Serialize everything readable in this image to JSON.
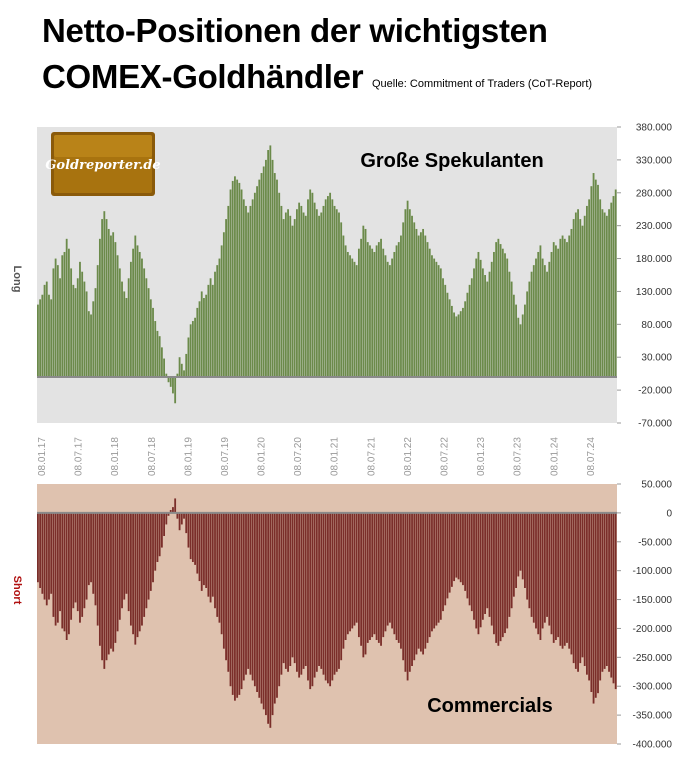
{
  "header": {
    "title_line1": "Netto-Positionen der wichtigsten",
    "title_line2": "COMEX-Goldhändler",
    "source": "Quelle: Commitment of Traders (CoT-Report)"
  },
  "logo": {
    "text": "Goldreporter.de"
  },
  "colors": {
    "top_bg": "#e3e3e3",
    "top_bar": "#6b8a4a",
    "bottom_bg": "#dfc2af",
    "bottom_bar": "#7a2e2a",
    "zero_line": "#8a8a8a",
    "long_label": "#555555",
    "short_label": "#b01010"
  },
  "chart_data": [
    {
      "type": "bar",
      "title": "Große Spekulanten",
      "ylabel": "Long",
      "ylim": [
        -70000,
        380000
      ],
      "yticks": [
        "380.000",
        "330.000",
        "280.000",
        "230.000",
        "180.000",
        "130.000",
        "80.000",
        "30.000",
        "-20.000",
        "-70.000"
      ],
      "xticks": [
        "08.01.17",
        "08.07.17",
        "08.01.18",
        "08.07.18",
        "08.01.19",
        "08.07.19",
        "08.01.20",
        "08.07.20",
        "08.01.21",
        "08.07.21",
        "08.01.22",
        "08.07.22",
        "08.01.23",
        "08.07.23",
        "08.01.24",
        "08.07.24"
      ],
      "series": [
        {
          "values": [
            110000,
            118000,
            125000,
            140000,
            145000,
            125000,
            118000,
            165000,
            180000,
            170000,
            150000,
            185000,
            190000,
            210000,
            195000,
            165000,
            140000,
            135000,
            150000,
            175000,
            160000,
            145000,
            130000,
            100000,
            95000,
            115000,
            135000,
            170000,
            210000,
            240000,
            252000,
            240000,
            225000,
            215000,
            220000,
            205000,
            185000,
            165000,
            145000,
            130000,
            120000,
            150000,
            175000,
            195000,
            215000,
            200000,
            190000,
            180000,
            165000,
            150000,
            135000,
            118000,
            105000,
            85000,
            70000,
            62000,
            45000,
            28000,
            5000,
            -8000,
            -15000,
            -25000,
            -40000,
            5000,
            30000,
            20000,
            10000,
            35000,
            60000,
            80000,
            85000,
            90000,
            105000,
            115000,
            130000,
            120000,
            125000,
            140000,
            150000,
            140000,
            160000,
            170000,
            180000,
            200000,
            220000,
            240000,
            260000,
            285000,
            298000,
            305000,
            300000,
            295000,
            285000,
            270000,
            260000,
            250000,
            260000,
            270000,
            280000,
            290000,
            300000,
            310000,
            320000,
            330000,
            345000,
            352000,
            330000,
            310000,
            300000,
            280000,
            260000,
            240000,
            250000,
            255000,
            245000,
            230000,
            240000,
            255000,
            265000,
            260000,
            250000,
            245000,
            270000,
            285000,
            280000,
            265000,
            255000,
            245000,
            250000,
            260000,
            270000,
            275000,
            280000,
            270000,
            260000,
            255000,
            250000,
            235000,
            215000,
            200000,
            190000,
            185000,
            180000,
            175000,
            170000,
            195000,
            210000,
            230000,
            225000,
            205000,
            200000,
            195000,
            190000,
            200000,
            205000,
            210000,
            195000,
            185000,
            175000,
            170000,
            180000,
            190000,
            200000,
            205000,
            215000,
            235000,
            255000,
            268000,
            255000,
            245000,
            235000,
            225000,
            215000,
            220000,
            225000,
            215000,
            205000,
            195000,
            185000,
            180000,
            175000,
            170000,
            165000,
            150000,
            140000,
            128000,
            118000,
            108000,
            98000,
            92000,
            95000,
            100000,
            105000,
            115000,
            128000,
            140000,
            150000,
            165000,
            180000,
            190000,
            178000,
            165000,
            155000,
            145000,
            160000,
            175000,
            190000,
            205000,
            210000,
            202000,
            195000,
            188000,
            180000,
            160000,
            145000,
            125000,
            110000,
            90000,
            80000,
            95000,
            110000,
            130000,
            145000,
            160000,
            170000,
            180000,
            190000,
            200000,
            180000,
            170000,
            160000,
            175000,
            190000,
            205000,
            200000,
            195000,
            210000,
            215000,
            210000,
            205000,
            215000,
            225000,
            240000,
            250000,
            255000,
            240000,
            230000,
            245000,
            260000,
            270000,
            290000,
            310000,
            300000,
            292000,
            270000,
            255000,
            250000,
            245000,
            255000,
            265000,
            275000,
            285000
          ]
        }
      ]
    },
    {
      "type": "bar",
      "title": "Commercials",
      "ylabel": "Short",
      "ylim": [
        -400000,
        50000
      ],
      "yticks": [
        "50.000",
        "0",
        "-50.000",
        "-100.000",
        "-150.000",
        "-200.000",
        "-250.000",
        "-300.000",
        "-350.000",
        "-400.000"
      ],
      "series": [
        {
          "values": [
            -120000,
            -130000,
            -140000,
            -150000,
            -160000,
            -150000,
            -140000,
            -180000,
            -195000,
            -190000,
            -170000,
            -200000,
            -205000,
            -220000,
            -210000,
            -185000,
            -165000,
            -155000,
            -170000,
            -190000,
            -180000,
            -165000,
            -150000,
            -125000,
            -120000,
            -140000,
            -160000,
            -195000,
            -230000,
            -255000,
            -270000,
            -255000,
            -245000,
            -235000,
            -240000,
            -225000,
            -205000,
            -185000,
            -165000,
            -150000,
            -140000,
            -170000,
            -195000,
            -210000,
            -228000,
            -215000,
            -205000,
            -195000,
            -180000,
            -165000,
            -150000,
            -135000,
            -120000,
            -100000,
            -85000,
            -75000,
            -60000,
            -40000,
            -20000,
            -5000,
            5000,
            10000,
            25000,
            -10000,
            -30000,
            -20000,
            -10000,
            -35000,
            -60000,
            -80000,
            -85000,
            -90000,
            -105000,
            -118000,
            -135000,
            -125000,
            -130000,
            -145000,
            -155000,
            -145000,
            -165000,
            -180000,
            -190000,
            -210000,
            -235000,
            -255000,
            -275000,
            -300000,
            -315000,
            -325000,
            -320000,
            -315000,
            -305000,
            -290000,
            -280000,
            -270000,
            -280000,
            -290000,
            -300000,
            -310000,
            -320000,
            -330000,
            -340000,
            -350000,
            -365000,
            -372000,
            -350000,
            -330000,
            -320000,
            -300000,
            -280000,
            -260000,
            -270000,
            -275000,
            -265000,
            -250000,
            -260000,
            -275000,
            -285000,
            -280000,
            -270000,
            -265000,
            -290000,
            -305000,
            -300000,
            -285000,
            -275000,
            -265000,
            -270000,
            -280000,
            -290000,
            -295000,
            -300000,
            -290000,
            -280000,
            -275000,
            -270000,
            -255000,
            -235000,
            -220000,
            -210000,
            -205000,
            -200000,
            -195000,
            -190000,
            -215000,
            -230000,
            -250000,
            -245000,
            -225000,
            -220000,
            -215000,
            -210000,
            -220000,
            -225000,
            -230000,
            -215000,
            -205000,
            -195000,
            -190000,
            -200000,
            -210000,
            -220000,
            -225000,
            -235000,
            -255000,
            -275000,
            -290000,
            -275000,
            -265000,
            -255000,
            -245000,
            -235000,
            -240000,
            -245000,
            -235000,
            -225000,
            -215000,
            -205000,
            -200000,
            -195000,
            -190000,
            -185000,
            -170000,
            -160000,
            -148000,
            -138000,
            -128000,
            -118000,
            -112000,
            -115000,
            -120000,
            -125000,
            -135000,
            -148000,
            -160000,
            -170000,
            -185000,
            -200000,
            -210000,
            -198000,
            -185000,
            -175000,
            -165000,
            -180000,
            -195000,
            -210000,
            -225000,
            -230000,
            -222000,
            -215000,
            -208000,
            -200000,
            -180000,
            -165000,
            -145000,
            -130000,
            -110000,
            -100000,
            -115000,
            -130000,
            -150000,
            -165000,
            -180000,
            -190000,
            -200000,
            -210000,
            -220000,
            -200000,
            -190000,
            -180000,
            -195000,
            -210000,
            -225000,
            -220000,
            -215000,
            -230000,
            -235000,
            -230000,
            -225000,
            -235000,
            -245000,
            -260000,
            -270000,
            -275000,
            -260000,
            -250000,
            -265000,
            -280000,
            -290000,
            -310000,
            -330000,
            -320000,
            -312000,
            -290000,
            -275000,
            -270000,
            -265000,
            -275000,
            -285000,
            -295000,
            -305000
          ]
        }
      ]
    }
  ]
}
